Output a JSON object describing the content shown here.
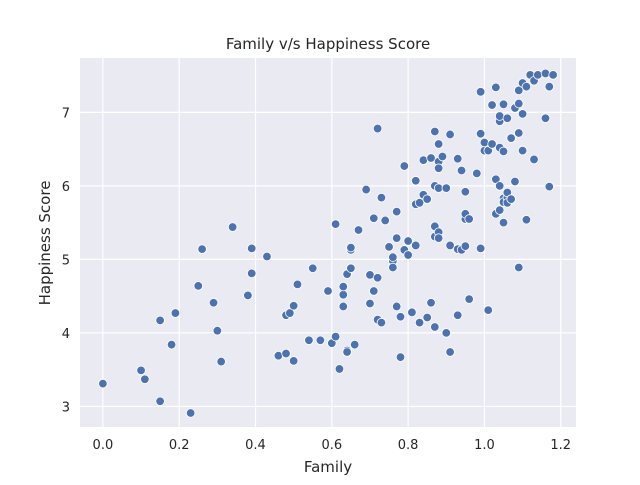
{
  "chart_data": {
    "type": "scatter",
    "title": "Family v/s Happiness Score",
    "xlabel": "Family",
    "ylabel": "Happiness Score",
    "xlim": [
      -0.06,
      1.24
    ],
    "ylim": [
      2.72,
      7.74
    ],
    "xticks": [
      0.0,
      0.2,
      0.4,
      0.6,
      0.8,
      1.0,
      1.2
    ],
    "xtick_labels": [
      "0.0",
      "0.2",
      "0.4",
      "0.6",
      "0.8",
      "1.0",
      "1.2"
    ],
    "yticks": [
      3,
      4,
      5,
      6,
      7
    ],
    "ytick_labels": [
      "3",
      "4",
      "5",
      "6",
      "7"
    ],
    "grid": true,
    "style": {
      "background": "#eaeaf2",
      "grid_color": "#ffffff",
      "point_color": "#4c72b0",
      "point_edge": "#ffffff",
      "text_color": "#262626"
    },
    "points": [
      {
        "x": 0.0,
        "y": 3.31
      },
      {
        "x": 0.1,
        "y": 3.49
      },
      {
        "x": 0.11,
        "y": 3.37
      },
      {
        "x": 0.15,
        "y": 3.07
      },
      {
        "x": 0.15,
        "y": 4.17
      },
      {
        "x": 0.18,
        "y": 3.84
      },
      {
        "x": 0.19,
        "y": 4.27
      },
      {
        "x": 0.23,
        "y": 2.91
      },
      {
        "x": 0.25,
        "y": 4.64
      },
      {
        "x": 0.26,
        "y": 5.14
      },
      {
        "x": 0.29,
        "y": 4.41
      },
      {
        "x": 0.3,
        "y": 4.03
      },
      {
        "x": 0.31,
        "y": 3.61
      },
      {
        "x": 0.34,
        "y": 5.44
      },
      {
        "x": 0.38,
        "y": 4.51
      },
      {
        "x": 0.39,
        "y": 5.15
      },
      {
        "x": 0.39,
        "y": 4.81
      },
      {
        "x": 0.43,
        "y": 5.04
      },
      {
        "x": 0.46,
        "y": 3.69
      },
      {
        "x": 0.48,
        "y": 3.72
      },
      {
        "x": 0.48,
        "y": 4.24
      },
      {
        "x": 0.49,
        "y": 4.27
      },
      {
        "x": 0.5,
        "y": 4.37
      },
      {
        "x": 0.5,
        "y": 3.62
      },
      {
        "x": 0.51,
        "y": 4.66
      },
      {
        "x": 0.54,
        "y": 3.9
      },
      {
        "x": 0.55,
        "y": 4.88
      },
      {
        "x": 0.57,
        "y": 3.9
      },
      {
        "x": 0.59,
        "y": 4.57
      },
      {
        "x": 0.6,
        "y": 3.86
      },
      {
        "x": 0.61,
        "y": 3.95
      },
      {
        "x": 0.61,
        "y": 5.48
      },
      {
        "x": 0.62,
        "y": 3.51
      },
      {
        "x": 0.63,
        "y": 4.36
      },
      {
        "x": 0.63,
        "y": 4.52
      },
      {
        "x": 0.63,
        "y": 4.63
      },
      {
        "x": 0.64,
        "y": 3.76
      },
      {
        "x": 0.64,
        "y": 3.74
      },
      {
        "x": 0.64,
        "y": 4.8
      },
      {
        "x": 0.65,
        "y": 4.88
      },
      {
        "x": 0.65,
        "y": 5.13
      },
      {
        "x": 0.65,
        "y": 5.16
      },
      {
        "x": 0.66,
        "y": 3.84
      },
      {
        "x": 0.67,
        "y": 5.4
      },
      {
        "x": 0.69,
        "y": 5.95
      },
      {
        "x": 0.7,
        "y": 4.79
      },
      {
        "x": 0.7,
        "y": 4.4
      },
      {
        "x": 0.71,
        "y": 4.57
      },
      {
        "x": 0.71,
        "y": 5.56
      },
      {
        "x": 0.72,
        "y": 4.75
      },
      {
        "x": 0.72,
        "y": 6.78
      },
      {
        "x": 0.72,
        "y": 4.18
      },
      {
        "x": 0.73,
        "y": 4.14
      },
      {
        "x": 0.73,
        "y": 5.84
      },
      {
        "x": 0.74,
        "y": 5.53
      },
      {
        "x": 0.75,
        "y": 5.17
      },
      {
        "x": 0.76,
        "y": 4.98
      },
      {
        "x": 0.76,
        "y": 5.03
      },
      {
        "x": 0.76,
        "y": 4.89
      },
      {
        "x": 0.77,
        "y": 5.29
      },
      {
        "x": 0.77,
        "y": 5.65
      },
      {
        "x": 0.77,
        "y": 4.36
      },
      {
        "x": 0.78,
        "y": 3.67
      },
      {
        "x": 0.78,
        "y": 4.22
      },
      {
        "x": 0.79,
        "y": 6.27
      },
      {
        "x": 0.79,
        "y": 5.13
      },
      {
        "x": 0.8,
        "y": 5.06
      },
      {
        "x": 0.8,
        "y": 5.25
      },
      {
        "x": 0.81,
        "y": 4.28
      },
      {
        "x": 0.82,
        "y": 5.19
      },
      {
        "x": 0.82,
        "y": 6.07
      },
      {
        "x": 0.82,
        "y": 5.75
      },
      {
        "x": 0.83,
        "y": 4.14
      },
      {
        "x": 0.83,
        "y": 5.77
      },
      {
        "x": 0.84,
        "y": 5.88
      },
      {
        "x": 0.84,
        "y": 6.35
      },
      {
        "x": 0.85,
        "y": 4.21
      },
      {
        "x": 0.85,
        "y": 5.82
      },
      {
        "x": 0.86,
        "y": 6.38
      },
      {
        "x": 0.86,
        "y": 4.41
      },
      {
        "x": 0.87,
        "y": 4.08
      },
      {
        "x": 0.87,
        "y": 5.31
      },
      {
        "x": 0.87,
        "y": 6.0
      },
      {
        "x": 0.87,
        "y": 5.45
      },
      {
        "x": 0.87,
        "y": 6.74
      },
      {
        "x": 0.88,
        "y": 5.37
      },
      {
        "x": 0.88,
        "y": 6.57
      },
      {
        "x": 0.88,
        "y": 6.33
      },
      {
        "x": 0.88,
        "y": 6.24
      },
      {
        "x": 0.88,
        "y": 5.29
      },
      {
        "x": 0.88,
        "y": 5.97
      },
      {
        "x": 0.89,
        "y": 6.4
      },
      {
        "x": 0.9,
        "y": 4.0
      },
      {
        "x": 0.9,
        "y": 5.97
      },
      {
        "x": 0.91,
        "y": 6.7
      },
      {
        "x": 0.91,
        "y": 5.19
      },
      {
        "x": 0.91,
        "y": 3.74
      },
      {
        "x": 0.93,
        "y": 4.24
      },
      {
        "x": 0.93,
        "y": 6.37
      },
      {
        "x": 0.93,
        "y": 5.14
      },
      {
        "x": 0.94,
        "y": 5.13
      },
      {
        "x": 0.94,
        "y": 6.21
      },
      {
        "x": 0.95,
        "y": 5.55
      },
      {
        "x": 0.95,
        "y": 5.18
      },
      {
        "x": 0.95,
        "y": 5.62
      },
      {
        "x": 0.95,
        "y": 5.92
      },
      {
        "x": 0.96,
        "y": 4.46
      },
      {
        "x": 0.96,
        "y": 5.55
      },
      {
        "x": 0.98,
        "y": 6.17
      },
      {
        "x": 0.99,
        "y": 6.71
      },
      {
        "x": 0.99,
        "y": 7.28
      },
      {
        "x": 0.99,
        "y": 5.15
      },
      {
        "x": 1.0,
        "y": 6.48
      },
      {
        "x": 1.0,
        "y": 6.59
      },
      {
        "x": 1.01,
        "y": 4.31
      },
      {
        "x": 1.01,
        "y": 6.48
      },
      {
        "x": 1.02,
        "y": 7.1
      },
      {
        "x": 1.02,
        "y": 6.57
      },
      {
        "x": 1.03,
        "y": 6.09
      },
      {
        "x": 1.03,
        "y": 7.34
      },
      {
        "x": 1.03,
        "y": 5.62
      },
      {
        "x": 1.04,
        "y": 6.52
      },
      {
        "x": 1.04,
        "y": 6.88
      },
      {
        "x": 1.04,
        "y": 6.95
      },
      {
        "x": 1.04,
        "y": 5.67
      },
      {
        "x": 1.04,
        "y": 6.0
      },
      {
        "x": 1.05,
        "y": 7.11
      },
      {
        "x": 1.05,
        "y": 6.47
      },
      {
        "x": 1.05,
        "y": 5.83
      },
      {
        "x": 1.05,
        "y": 5.5
      },
      {
        "x": 1.05,
        "y": 5.78
      },
      {
        "x": 1.06,
        "y": 6.92
      },
      {
        "x": 1.06,
        "y": 5.84
      },
      {
        "x": 1.06,
        "y": 5.77
      },
      {
        "x": 1.06,
        "y": 5.91
      },
      {
        "x": 1.07,
        "y": 5.82
      },
      {
        "x": 1.07,
        "y": 6.65
      },
      {
        "x": 1.08,
        "y": 7.06
      },
      {
        "x": 1.08,
        "y": 6.06
      },
      {
        "x": 1.09,
        "y": 7.12
      },
      {
        "x": 1.09,
        "y": 6.72
      },
      {
        "x": 1.09,
        "y": 4.89
      },
      {
        "x": 1.09,
        "y": 7.3
      },
      {
        "x": 1.1,
        "y": 7.4
      },
      {
        "x": 1.1,
        "y": 6.98
      },
      {
        "x": 1.1,
        "y": 6.48
      },
      {
        "x": 1.11,
        "y": 5.54
      },
      {
        "x": 1.11,
        "y": 7.35
      },
      {
        "x": 1.12,
        "y": 7.51
      },
      {
        "x": 1.13,
        "y": 7.43
      },
      {
        "x": 1.13,
        "y": 6.36
      },
      {
        "x": 1.14,
        "y": 7.51
      },
      {
        "x": 1.16,
        "y": 7.53
      },
      {
        "x": 1.16,
        "y": 6.92
      },
      {
        "x": 1.17,
        "y": 7.35
      },
      {
        "x": 1.17,
        "y": 5.99
      },
      {
        "x": 1.18,
        "y": 7.51
      }
    ]
  }
}
